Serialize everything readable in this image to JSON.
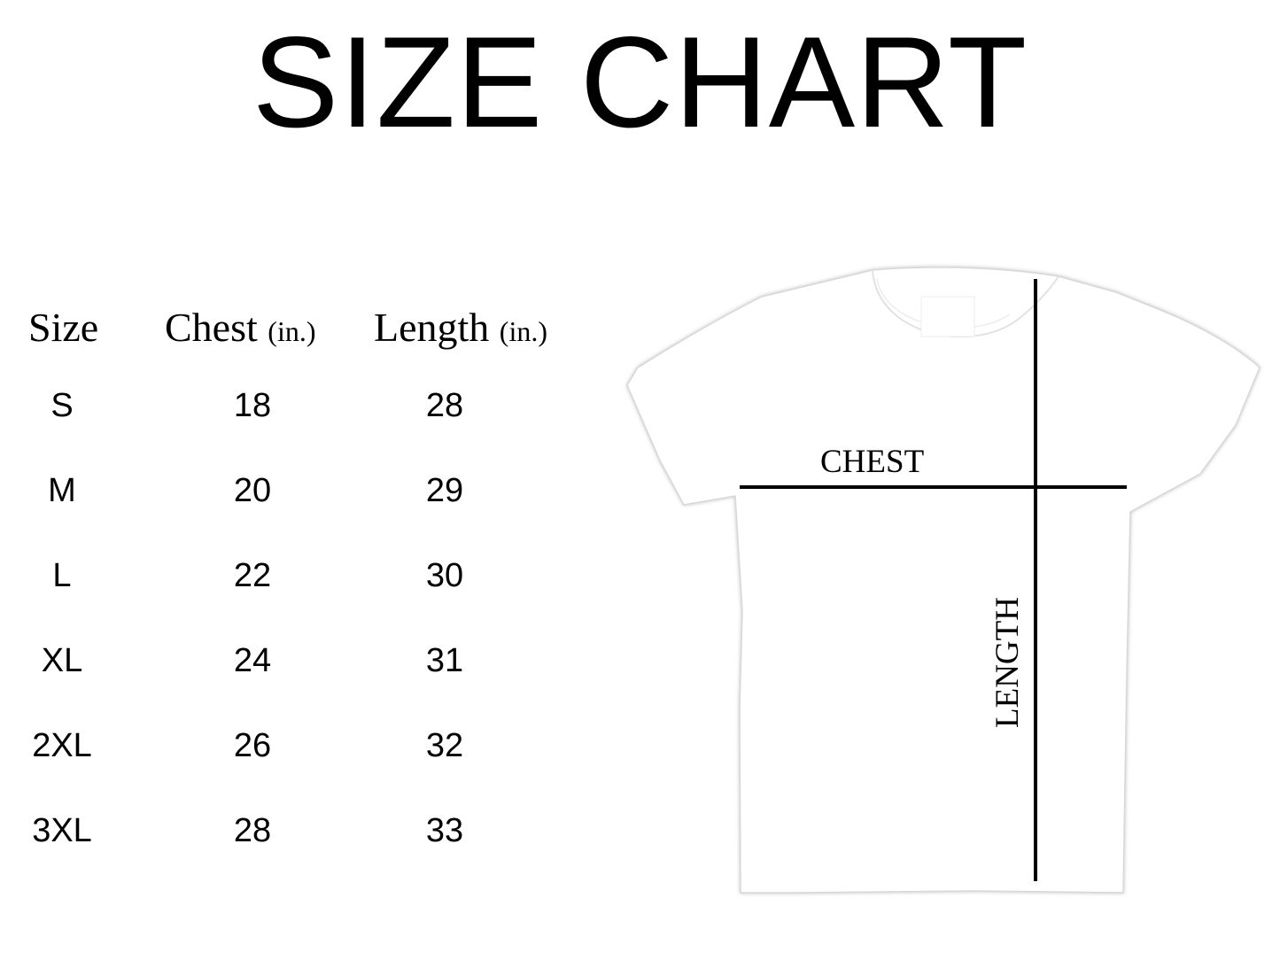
{
  "title": "SIZE CHART",
  "table": {
    "headers": [
      {
        "label": "Size",
        "unit": ""
      },
      {
        "label": "Chest",
        "unit": "(in.)"
      },
      {
        "label": "Length",
        "unit": "(in.)"
      }
    ],
    "rows": [
      {
        "size": "S",
        "chest": "18",
        "length": "28"
      },
      {
        "size": "M",
        "chest": "20",
        "length": "29"
      },
      {
        "size": "L",
        "chest": "22",
        "length": "30"
      },
      {
        "size": "XL",
        "chest": "24",
        "length": "31"
      },
      {
        "size": "2XL",
        "chest": "26",
        "length": "32"
      },
      {
        "size": "3XL",
        "chest": "28",
        "length": "33"
      }
    ]
  },
  "diagram": {
    "chest_label": "CHEST",
    "length_label": "LENGTH",
    "shirt_color": "#ffffff",
    "line_color": "#000000"
  }
}
